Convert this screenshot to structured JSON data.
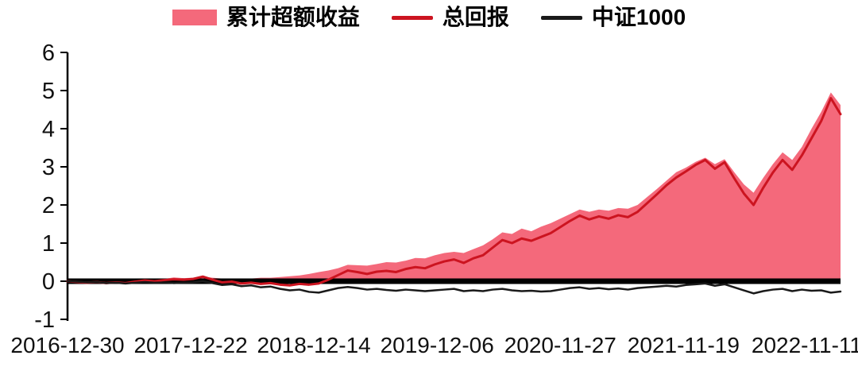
{
  "page": {
    "background": "#ffffff"
  },
  "chart_data": {
    "type": "line",
    "title": "",
    "xlabel": "",
    "ylabel": "",
    "grid": false,
    "legend_position": "top-center",
    "zero_baseline": true,
    "baseline_color": "#000000",
    "y_range": [
      -1,
      6
    ],
    "y_ticks": [
      6,
      5,
      4,
      3,
      2,
      1,
      0,
      -1
    ],
    "x_range": [
      0,
      320
    ],
    "x_unit": "weeks-since-2016-12-30",
    "x_ticks": [
      {
        "pos": 0,
        "label": "2016-12-30"
      },
      {
        "pos": 51,
        "label": "2017-12-22"
      },
      {
        "pos": 102,
        "label": "2018-12-14"
      },
      {
        "pos": 153,
        "label": "2019-12-06"
      },
      {
        "pos": 204,
        "label": "2020-11-27"
      },
      {
        "pos": 255,
        "label": "2021-11-19"
      },
      {
        "pos": 306,
        "label": "2022-11-11"
      }
    ],
    "x": [
      0,
      4,
      8,
      12,
      16,
      20,
      24,
      28,
      32,
      36,
      40,
      44,
      48,
      52,
      56,
      60,
      64,
      68,
      72,
      76,
      80,
      84,
      88,
      92,
      96,
      100,
      104,
      108,
      112,
      116,
      120,
      124,
      128,
      132,
      136,
      140,
      144,
      148,
      152,
      156,
      160,
      164,
      168,
      172,
      176,
      180,
      184,
      188,
      192,
      196,
      200,
      204,
      208,
      212,
      216,
      220,
      224,
      228,
      232,
      236,
      240,
      244,
      248,
      252,
      256,
      260,
      264,
      268,
      272,
      276,
      280,
      284,
      288,
      292,
      296,
      300,
      304,
      308,
      312,
      316,
      320
    ],
    "series": [
      {
        "name": "累计超额收益",
        "key": "cumulative-excess-return",
        "type": "area",
        "color": "#f4697b",
        "values": [
          0.0,
          -0.01,
          -0.01,
          0.0,
          0.0,
          0.01,
          0.01,
          0.03,
          0.04,
          0.04,
          0.06,
          0.1,
          0.08,
          0.09,
          0.12,
          0.09,
          0.07,
          0.07,
          0.07,
          0.07,
          0.09,
          0.09,
          0.11,
          0.13,
          0.15,
          0.19,
          0.24,
          0.28,
          0.34,
          0.43,
          0.42,
          0.41,
          0.45,
          0.5,
          0.49,
          0.54,
          0.61,
          0.6,
          0.68,
          0.74,
          0.77,
          0.74,
          0.84,
          0.94,
          1.1,
          1.28,
          1.24,
          1.38,
          1.31,
          1.43,
          1.52,
          1.64,
          1.76,
          1.88,
          1.82,
          1.88,
          1.85,
          1.92,
          1.9,
          2.0,
          2.21,
          2.42,
          2.64,
          2.86,
          2.98,
          3.13,
          3.24,
          3.07,
          3.2,
          2.86,
          2.54,
          2.32,
          2.71,
          3.07,
          3.38,
          3.18,
          3.52,
          4.0,
          4.44,
          4.95,
          4.62
        ]
      },
      {
        "name": "总回报",
        "key": "total-return",
        "type": "line",
        "color": "#cc1420",
        "width": 3,
        "values": [
          0.0,
          -0.02,
          -0.04,
          -0.02,
          -0.05,
          -0.03,
          -0.05,
          -0.01,
          0.02,
          0.0,
          0.03,
          0.05,
          0.04,
          0.06,
          0.12,
          0.04,
          -0.03,
          -0.01,
          -0.06,
          -0.04,
          -0.07,
          -0.05,
          -0.09,
          -0.11,
          -0.07,
          -0.09,
          -0.06,
          0.04,
          0.16,
          0.28,
          0.24,
          0.19,
          0.25,
          0.27,
          0.24,
          0.32,
          0.37,
          0.34,
          0.44,
          0.52,
          0.57,
          0.48,
          0.6,
          0.68,
          0.88,
          1.08,
          1.0,
          1.12,
          1.06,
          1.16,
          1.26,
          1.42,
          1.58,
          1.72,
          1.62,
          1.7,
          1.64,
          1.73,
          1.68,
          1.82,
          2.05,
          2.28,
          2.52,
          2.72,
          2.88,
          3.05,
          3.18,
          2.95,
          3.12,
          2.7,
          2.3,
          2.0,
          2.45,
          2.85,
          3.18,
          2.92,
          3.3,
          3.75,
          4.2,
          4.8,
          4.38
        ]
      },
      {
        "name": "中证1000",
        "key": "csi-1000",
        "type": "line",
        "color": "#1a1a1a",
        "width": 2.5,
        "values": [
          0.0,
          -0.01,
          -0.03,
          -0.02,
          -0.05,
          -0.04,
          -0.06,
          -0.04,
          -0.02,
          -0.04,
          -0.03,
          -0.05,
          -0.04,
          -0.03,
          0.0,
          -0.05,
          -0.1,
          -0.08,
          -0.13,
          -0.11,
          -0.16,
          -0.14,
          -0.2,
          -0.24,
          -0.22,
          -0.28,
          -0.3,
          -0.24,
          -0.18,
          -0.15,
          -0.18,
          -0.22,
          -0.2,
          -0.23,
          -0.25,
          -0.22,
          -0.24,
          -0.26,
          -0.24,
          -0.22,
          -0.2,
          -0.26,
          -0.24,
          -0.26,
          -0.22,
          -0.2,
          -0.24,
          -0.26,
          -0.25,
          -0.27,
          -0.26,
          -0.22,
          -0.18,
          -0.16,
          -0.2,
          -0.18,
          -0.21,
          -0.19,
          -0.22,
          -0.18,
          -0.16,
          -0.14,
          -0.12,
          -0.14,
          -0.1,
          -0.08,
          -0.06,
          -0.12,
          -0.08,
          -0.16,
          -0.24,
          -0.32,
          -0.26,
          -0.22,
          -0.2,
          -0.26,
          -0.22,
          -0.25,
          -0.24,
          -0.3,
          -0.27
        ]
      }
    ]
  }
}
